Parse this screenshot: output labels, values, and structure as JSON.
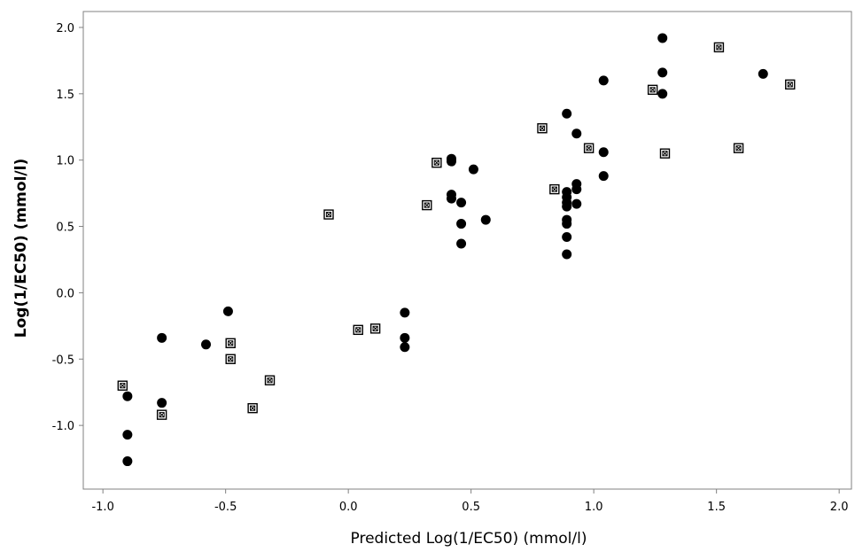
{
  "chart_data": {
    "type": "scatter",
    "title": "",
    "xlabel": "Predicted Log(1/EC50) (mmol/l)",
    "ylabel": "Log(1/EC50) (mmol/l)",
    "xlim": [
      -1.08,
      2.05
    ],
    "ylim": [
      -1.48,
      2.12
    ],
    "xticks": [
      "-1.0",
      "-0.5",
      "0.0",
      "0.5",
      "1.0",
      "1.5",
      "2.0"
    ],
    "yticks": [
      "-1.0",
      "-0.5",
      "0.0",
      "0.5",
      "1.0",
      "1.5",
      "2.0"
    ],
    "grid": false,
    "series": [
      {
        "marker": "filled-circle",
        "color": "#000000",
        "points": [
          [
            -0.9,
            -0.78
          ],
          [
            -0.9,
            -1.07
          ],
          [
            -0.9,
            -1.27
          ],
          [
            -0.76,
            -0.34
          ],
          [
            -0.76,
            -0.83
          ],
          [
            -0.58,
            -0.39
          ],
          [
            -0.49,
            -0.14
          ],
          [
            0.23,
            -0.15
          ],
          [
            0.23,
            -0.34
          ],
          [
            0.23,
            -0.41
          ],
          [
            0.42,
            1.01
          ],
          [
            0.42,
            0.99
          ],
          [
            0.42,
            0.74
          ],
          [
            0.42,
            0.71
          ],
          [
            0.46,
            0.68
          ],
          [
            0.46,
            0.52
          ],
          [
            0.46,
            0.37
          ],
          [
            0.51,
            0.93
          ],
          [
            0.56,
            0.55
          ],
          [
            0.89,
            1.35
          ],
          [
            0.89,
            0.76
          ],
          [
            0.89,
            0.72
          ],
          [
            0.89,
            0.68
          ],
          [
            0.89,
            0.65
          ],
          [
            0.89,
            0.55
          ],
          [
            0.89,
            0.52
          ],
          [
            0.89,
            0.42
          ],
          [
            0.89,
            0.29
          ],
          [
            0.93,
            1.2
          ],
          [
            0.93,
            0.82
          ],
          [
            0.93,
            0.78
          ],
          [
            0.93,
            0.67
          ],
          [
            1.04,
            1.6
          ],
          [
            1.04,
            1.06
          ],
          [
            1.04,
            0.88
          ],
          [
            1.28,
            1.92
          ],
          [
            1.28,
            1.66
          ],
          [
            1.28,
            1.5
          ],
          [
            1.69,
            1.65
          ]
        ]
      },
      {
        "marker": "boxed-x-square",
        "color": "#000000",
        "points": [
          [
            -0.92,
            -0.7
          ],
          [
            -0.76,
            -0.92
          ],
          [
            -0.48,
            -0.38
          ],
          [
            -0.48,
            -0.5
          ],
          [
            -0.39,
            -0.87
          ],
          [
            -0.32,
            -0.66
          ],
          [
            -0.08,
            0.59
          ],
          [
            0.04,
            -0.28
          ],
          [
            0.11,
            -0.27
          ],
          [
            0.32,
            0.66
          ],
          [
            0.36,
            0.98
          ],
          [
            0.79,
            1.24
          ],
          [
            0.84,
            0.78
          ],
          [
            0.98,
            1.09
          ],
          [
            1.24,
            1.53
          ],
          [
            1.29,
            1.05
          ],
          [
            1.51,
            1.85
          ],
          [
            1.59,
            1.09
          ],
          [
            1.8,
            1.57
          ]
        ]
      }
    ]
  }
}
